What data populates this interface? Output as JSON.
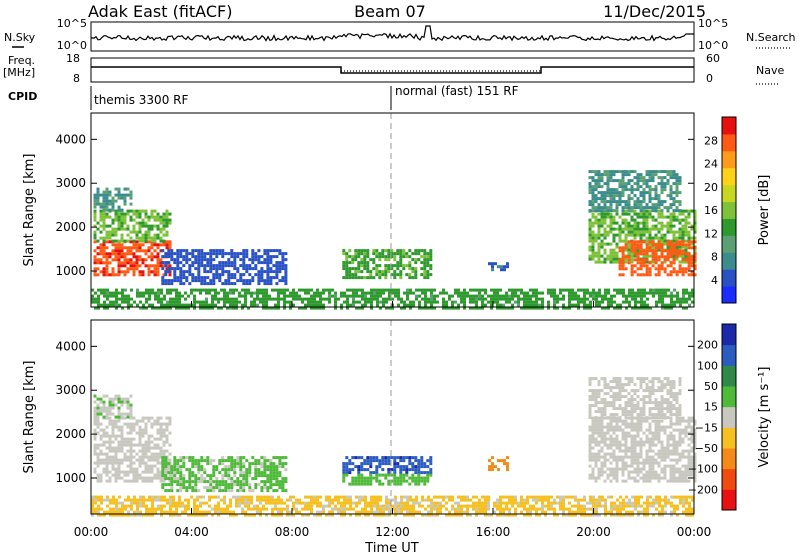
{
  "header": {
    "station": "Adak East (fitACF)",
    "beam": "Beam 07",
    "date": "11/Dec/2015"
  },
  "status_panels": {
    "nsky_label": "N.Sky",
    "nsearch_label": "N.Search",
    "freq_label_line1": "Freq.",
    "freq_label_line2": "[MHz]",
    "nave_label": "Nave",
    "cpid_label": "CPID",
    "left_ticks_noise": [
      "10^5",
      "10^0"
    ],
    "right_ticks_noise": [
      "10^5",
      "10^0"
    ],
    "left_ticks_freq": [
      "18",
      "8"
    ],
    "right_ticks_freq": [
      "60",
      "0"
    ],
    "cpid_segments": [
      {
        "label": "themis 3300 RF",
        "start": 0
      },
      {
        "label": "normal (fast) 151 RF",
        "start": 12.0
      }
    ]
  },
  "chart_data": [
    {
      "type": "heatmap",
      "name": "power",
      "ylabel": "Slant Range [km]",
      "xlabel": "Time UT",
      "xlim": [
        0,
        24
      ],
      "ylim": [
        180,
        4600
      ],
      "yticks": [
        1000,
        2000,
        3000,
        4000
      ],
      "xticks": [
        "00:00",
        "04:00",
        "08:00",
        "12:00",
        "16:00",
        "20:00",
        "00:00"
      ],
      "colorbar": {
        "label": "Power [dB]",
        "ticks": [
          "4",
          "8",
          "12",
          "16",
          "20",
          "24",
          "28"
        ],
        "range": [
          0,
          30
        ],
        "colors": [
          "#1a2cff",
          "#2851c6",
          "#3b8c8c",
          "#5aa074",
          "#2e9a2e",
          "#7fc23a",
          "#c8d820",
          "#ffd21a",
          "#ff9a1a",
          "#ff5a14",
          "#e8100e"
        ]
      },
      "regions": [
        {
          "t0": 0.1,
          "t1": 3.1,
          "r0": 900,
          "r1": 1700,
          "level": 27
        },
        {
          "t0": 0.1,
          "t1": 3.1,
          "r0": 1700,
          "r1": 2400,
          "level": 14
        },
        {
          "t0": 0.1,
          "t1": 1.6,
          "r0": 2400,
          "r1": 2900,
          "level": 8
        },
        {
          "t0": 2.8,
          "t1": 7.8,
          "r0": 700,
          "r1": 1500,
          "level": 4
        },
        {
          "t0": 10.0,
          "t1": 13.5,
          "r0": 850,
          "r1": 1500,
          "level": 13
        },
        {
          "t0": 15.8,
          "t1": 16.6,
          "r0": 1000,
          "r1": 1200,
          "level": 5
        },
        {
          "t0": 19.8,
          "t1": 24.0,
          "r0": 1200,
          "r1": 2400,
          "level": 14
        },
        {
          "t0": 21.0,
          "t1": 24.0,
          "r0": 900,
          "r1": 1700,
          "level": 26
        },
        {
          "t0": 19.8,
          "t1": 23.5,
          "r0": 2400,
          "r1": 3300,
          "level": 8
        },
        {
          "t0": 0.0,
          "t1": 24.0,
          "r0": 180,
          "r1": 600,
          "level": 12
        }
      ]
    },
    {
      "type": "heatmap",
      "name": "velocity",
      "ylabel": "Slant Range [km]",
      "xlabel": "Time UT",
      "xlim": [
        0,
        24
      ],
      "ylim": [
        180,
        4600
      ],
      "yticks": [
        1000,
        2000,
        3000,
        4000
      ],
      "xticks": [
        "00:00",
        "04:00",
        "08:00",
        "12:00",
        "16:00",
        "20:00",
        "00:00"
      ],
      "colorbar": {
        "label": "Velocity [m s⁻¹]",
        "ticks": [
          "200",
          "100",
          "50",
          "15",
          "−15",
          "−50",
          "−100",
          "−200"
        ],
        "range": [
          -250,
          250
        ],
        "colors": [
          "#e81010",
          "#f04a10",
          "#f58a18",
          "#f5c020",
          "#c8c8c0",
          "#4fba3a",
          "#2e8a46",
          "#2b5cc0",
          "#1a2aa8"
        ]
      },
      "regions": [
        {
          "t0": 0.1,
          "t1": 3.1,
          "r0": 900,
          "r1": 2400,
          "level": 0
        },
        {
          "t0": 0.1,
          "t1": 1.6,
          "r0": 2400,
          "r1": 2900,
          "level": 20
        },
        {
          "t0": 2.8,
          "t1": 7.8,
          "r0": 700,
          "r1": 1500,
          "level": 40
        },
        {
          "t0": 10.0,
          "t1": 13.5,
          "r0": 1100,
          "r1": 1500,
          "level": 180
        },
        {
          "t0": 10.0,
          "t1": 13.5,
          "r0": 850,
          "r1": 1100,
          "level": 60
        },
        {
          "t0": 15.8,
          "t1": 16.6,
          "r0": 1200,
          "r1": 1500,
          "level": -120
        },
        {
          "t0": 19.8,
          "t1": 24.0,
          "r0": 900,
          "r1": 2400,
          "level": 0
        },
        {
          "t0": 19.8,
          "t1": 23.5,
          "r0": 2400,
          "r1": 3300,
          "level": 0
        },
        {
          "t0": 0.0,
          "t1": 24.0,
          "r0": 180,
          "r1": 600,
          "level": -40
        }
      ]
    }
  ]
}
